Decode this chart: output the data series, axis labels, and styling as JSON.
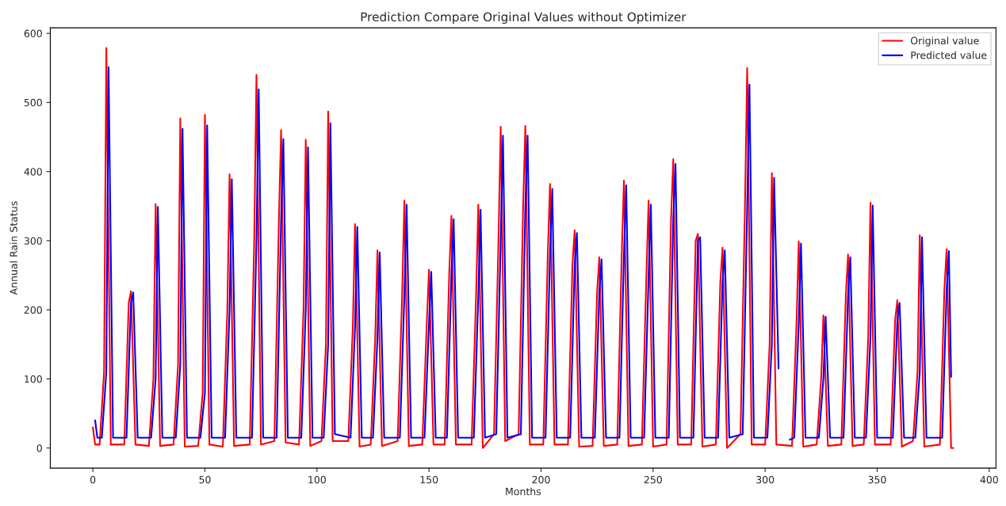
{
  "chart_data": {
    "type": "line",
    "title": "Prediction Compare Original Values without Optimizer",
    "xlabel": "Months",
    "ylabel": "Annual Rain Status",
    "xlim": [
      -19,
      403
    ],
    "xticks": [
      0,
      50,
      100,
      150,
      200,
      250,
      300,
      350,
      400
    ],
    "ylim": [
      -29,
      608
    ],
    "yticks": [
      0,
      100,
      200,
      300,
      400,
      500,
      600
    ],
    "grid": false,
    "legend": "top right",
    "marker": "none",
    "line_style": "solid",
    "series": [
      {
        "name": "Original value",
        "color": "#ff0000",
        "x": [
          0,
          1,
          3,
          5,
          6,
          8,
          14,
          16,
          17,
          19,
          25,
          27,
          28,
          30,
          36,
          38,
          39,
          41,
          47,
          49,
          50,
          52,
          58,
          60,
          61,
          63,
          70,
          72,
          73,
          75,
          81,
          83,
          84,
          86,
          92,
          94,
          95,
          97,
          102,
          104,
          105,
          107,
          114,
          116,
          117,
          119,
          124,
          126,
          127,
          129,
          136,
          138,
          139,
          141,
          147,
          149,
          150,
          152,
          157,
          159,
          160,
          162,
          169,
          171,
          172,
          174,
          179,
          181,
          182,
          184,
          190,
          192,
          193,
          195,
          201,
          203,
          204,
          206,
          212,
          214,
          215,
          217,
          223,
          225,
          226,
          228,
          234,
          236,
          237,
          239,
          245,
          247,
          248,
          250,
          256,
          258,
          259,
          261,
          267,
          269,
          270,
          272,
          278,
          280,
          281,
          283,
          289,
          291,
          292,
          294,
          300,
          302,
          303,
          305,
          312,
          314,
          315,
          317,
          323,
          325,
          326,
          328,
          334,
          336,
          337,
          339,
          344,
          346,
          347,
          349,
          356,
          358,
          359,
          361,
          366,
          368,
          369,
          371,
          378,
          380,
          381,
          383,
          384
        ],
        "values": [
          30,
          5,
          5,
          110,
          579,
          5,
          5,
          210,
          227,
          5,
          3,
          100,
          353,
          3,
          5,
          120,
          477,
          2,
          3,
          80,
          482,
          5,
          2,
          200,
          396,
          3,
          5,
          300,
          540,
          5,
          10,
          330,
          460,
          8,
          5,
          200,
          446,
          3,
          10,
          150,
          487,
          10,
          10,
          175,
          324,
          2,
          5,
          160,
          286,
          3,
          10,
          220,
          358,
          3,
          5,
          180,
          258,
          5,
          5,
          250,
          336,
          5,
          5,
          220,
          352,
          0,
          20,
          300,
          465,
          10,
          20,
          350,
          466,
          5,
          5,
          280,
          382,
          5,
          5,
          265,
          315,
          2,
          3,
          225,
          276,
          3,
          5,
          280,
          387,
          3,
          5,
          250,
          358,
          2,
          5,
          330,
          418,
          5,
          5,
          300,
          310,
          2,
          5,
          240,
          290,
          0,
          20,
          350,
          550,
          5,
          5,
          150,
          398,
          5,
          3,
          180,
          299,
          2,
          5,
          100,
          192,
          3,
          5,
          220,
          280,
          3,
          5,
          160,
          355,
          5,
          5,
          185,
          214,
          2,
          10,
          110,
          308,
          2,
          5,
          230,
          288,
          0,
          0
        ]
      },
      {
        "name": "Predicted value",
        "color": "#0000ff",
        "x": [
          1,
          2,
          4,
          6,
          7,
          9,
          15,
          17,
          18,
          20,
          26,
          28,
          29,
          31,
          37,
          39,
          40,
          42,
          48,
          50,
          51,
          53,
          59,
          61,
          62,
          64,
          71,
          73,
          74,
          76,
          82,
          84,
          85,
          87,
          93,
          95,
          96,
          98,
          103,
          105,
          106,
          108,
          115,
          117,
          118,
          120,
          125,
          127,
          128,
          130,
          137,
          139,
          140,
          142,
          148,
          150,
          151,
          153,
          158,
          160,
          161,
          163,
          170,
          172,
          173,
          175,
          180,
          182,
          183,
          185,
          191,
          193,
          194,
          196,
          202,
          204,
          205,
          207,
          213,
          215,
          216,
          218,
          224,
          226,
          227,
          229,
          235,
          237,
          238,
          240,
          246,
          248,
          249,
          251,
          257,
          259,
          260,
          262,
          268,
          270,
          271,
          273,
          279,
          281,
          282,
          284,
          290,
          292,
          293,
          295,
          301,
          303,
          304,
          306,
          307,
          311,
          313,
          315,
          316,
          318,
          324,
          326,
          327,
          329,
          335,
          337,
          338,
          340,
          345,
          347,
          348,
          350,
          357,
          359,
          360,
          362,
          367,
          369,
          370,
          372,
          379,
          381,
          382,
          383
        ],
        "values": [
          40,
          15,
          15,
          110,
          551,
          15,
          15,
          210,
          225,
          15,
          15,
          100,
          349,
          15,
          15,
          120,
          462,
          15,
          15,
          80,
          467,
          15,
          15,
          200,
          389,
          15,
          15,
          300,
          519,
          15,
          15,
          330,
          447,
          15,
          15,
          200,
          435,
          15,
          15,
          150,
          470,
          20,
          15,
          175,
          320,
          15,
          15,
          160,
          283,
          15,
          15,
          220,
          352,
          15,
          15,
          180,
          255,
          15,
          15,
          250,
          331,
          15,
          15,
          220,
          345,
          15,
          20,
          300,
          452,
          15,
          20,
          350,
          452,
          15,
          15,
          280,
          375,
          15,
          15,
          265,
          311,
          15,
          15,
          225,
          273,
          15,
          15,
          280,
          380,
          15,
          15,
          250,
          352,
          15,
          15,
          330,
          411,
          15,
          15,
          300,
          305,
          15,
          15,
          240,
          286,
          15,
          20,
          350,
          526,
          15,
          15,
          150,
          391,
          115,
          null,
          12,
          15,
          180,
          296,
          15,
          15,
          100,
          190,
          15,
          15,
          220,
          276,
          15,
          15,
          160,
          351,
          15,
          15,
          185,
          210,
          15,
          15,
          110,
          305,
          15,
          15,
          230,
          285,
          103
        ]
      }
    ]
  }
}
